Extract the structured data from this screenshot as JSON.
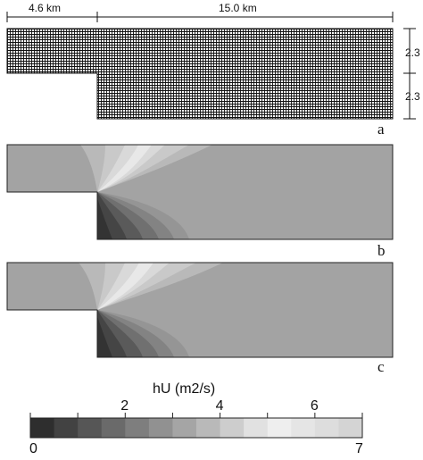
{
  "dimensions": {
    "left_width": "4.6 km",
    "right_width": "15.0 km",
    "height_top": "2.3",
    "height_bottom": "2.3"
  },
  "panels": {
    "a": "a",
    "b": "b",
    "c": "c"
  },
  "colorbar": {
    "title": "hU (m2/s)",
    "min_label": "0",
    "max_label": "7",
    "tick_labels": [
      "2",
      "4",
      "6"
    ],
    "tick_values": [
      2,
      4,
      6
    ],
    "min": 0,
    "max": 7,
    "levels": 14,
    "low_color": "#2e2e2e",
    "high_color": "#efefef"
  },
  "colors": {
    "background_field": "#a3a3a3",
    "mesh_line": "#111111",
    "mesh_background": "#ffffff"
  }
}
